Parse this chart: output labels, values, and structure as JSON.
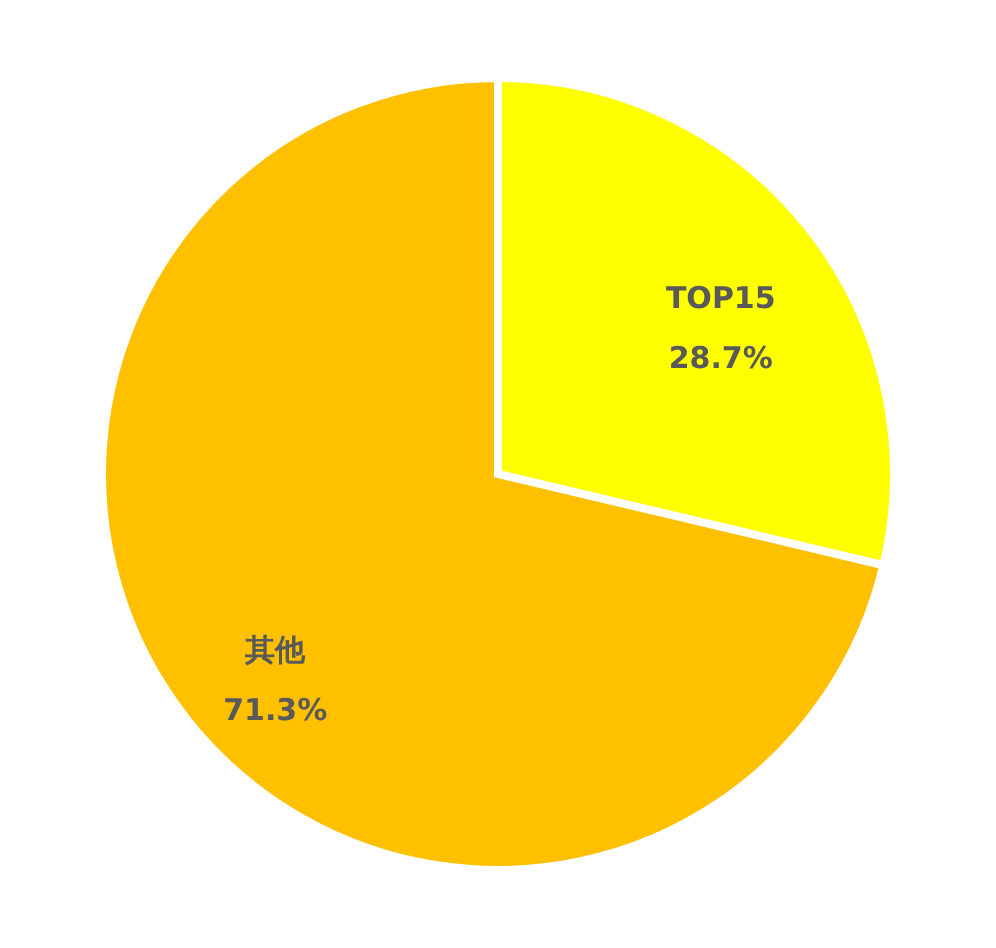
{
  "chart_data": {
    "type": "pie",
    "categories": [
      "TOP15",
      "其他"
    ],
    "values": [
      28.7,
      71.3
    ],
    "value_labels": [
      "28.7%",
      "71.3%"
    ],
    "colors": [
      "#ffff00",
      "#ffc000"
    ]
  }
}
